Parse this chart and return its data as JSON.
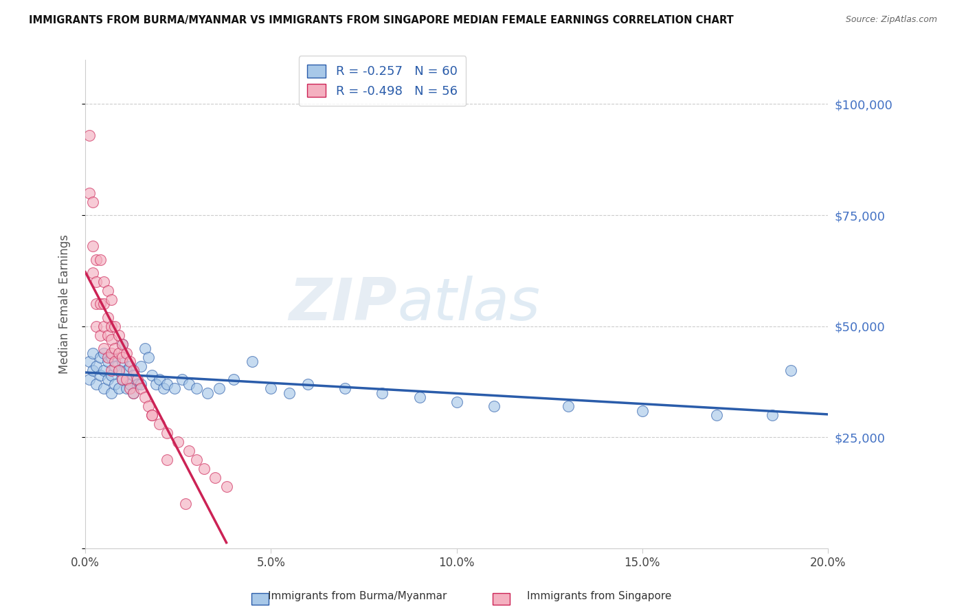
{
  "title": "IMMIGRANTS FROM BURMA/MYANMAR VS IMMIGRANTS FROM SINGAPORE MEDIAN FEMALE EARNINGS CORRELATION CHART",
  "source": "Source: ZipAtlas.com",
  "ylabel": "Median Female Earnings",
  "x_min": 0.0,
  "x_max": 0.2,
  "y_min": 0,
  "y_max": 110000,
  "yticks": [
    0,
    25000,
    50000,
    75000,
    100000
  ],
  "ytick_labels": [
    "",
    "$25,000",
    "$50,000",
    "$75,000",
    "$100,000"
  ],
  "xticks": [
    0.0,
    0.05,
    0.1,
    0.15,
    0.2
  ],
  "xtick_labels": [
    "0.0%",
    "5.0%",
    "10.0%",
    "15.0%",
    "20.0%"
  ],
  "legend_labels": [
    "Immigrants from Burma/Myanmar",
    "Immigrants from Singapore"
  ],
  "R_burma": -0.257,
  "N_burma": 60,
  "R_singapore": -0.498,
  "N_singapore": 56,
  "color_burma": "#a8c8e8",
  "color_singapore": "#f4b0c0",
  "line_color_burma": "#2a5caa",
  "line_color_singapore": "#cc2255",
  "background_color": "#ffffff",
  "watermark": "ZIPatlas",
  "burma_x": [
    0.001,
    0.001,
    0.002,
    0.002,
    0.003,
    0.003,
    0.004,
    0.004,
    0.005,
    0.005,
    0.005,
    0.006,
    0.006,
    0.007,
    0.007,
    0.007,
    0.008,
    0.008,
    0.009,
    0.009,
    0.01,
    0.01,
    0.01,
    0.011,
    0.011,
    0.012,
    0.012,
    0.013,
    0.013,
    0.014,
    0.015,
    0.015,
    0.016,
    0.017,
    0.018,
    0.019,
    0.02,
    0.021,
    0.022,
    0.024,
    0.026,
    0.028,
    0.03,
    0.033,
    0.036,
    0.04,
    0.045,
    0.05,
    0.055,
    0.06,
    0.07,
    0.08,
    0.09,
    0.1,
    0.11,
    0.13,
    0.15,
    0.17,
    0.185,
    0.19
  ],
  "burma_y": [
    42000,
    38000,
    40000,
    44000,
    37000,
    41000,
    39000,
    43000,
    36000,
    40000,
    44000,
    38000,
    42000,
    35000,
    39000,
    43000,
    37000,
    41000,
    36000,
    40000,
    38000,
    42000,
    46000,
    36000,
    40000,
    37000,
    41000,
    35000,
    39000,
    37000,
    41000,
    37000,
    45000,
    43000,
    39000,
    37000,
    38000,
    36000,
    37000,
    36000,
    38000,
    37000,
    36000,
    35000,
    36000,
    38000,
    42000,
    36000,
    35000,
    37000,
    36000,
    35000,
    34000,
    33000,
    32000,
    32000,
    31000,
    30000,
    30000,
    40000
  ],
  "singapore_x": [
    0.001,
    0.001,
    0.002,
    0.002,
    0.002,
    0.003,
    0.003,
    0.003,
    0.003,
    0.004,
    0.004,
    0.004,
    0.005,
    0.005,
    0.005,
    0.005,
    0.006,
    0.006,
    0.006,
    0.006,
    0.007,
    0.007,
    0.007,
    0.007,
    0.007,
    0.008,
    0.008,
    0.008,
    0.009,
    0.009,
    0.009,
    0.01,
    0.01,
    0.01,
    0.011,
    0.011,
    0.012,
    0.012,
    0.013,
    0.013,
    0.014,
    0.015,
    0.016,
    0.017,
    0.018,
    0.02,
    0.022,
    0.025,
    0.028,
    0.03,
    0.032,
    0.035,
    0.038,
    0.018,
    0.022,
    0.027
  ],
  "singapore_y": [
    93000,
    80000,
    78000,
    68000,
    62000,
    65000,
    60000,
    55000,
    50000,
    65000,
    55000,
    48000,
    60000,
    55000,
    50000,
    45000,
    58000,
    52000,
    48000,
    43000,
    56000,
    50000,
    47000,
    44000,
    40000,
    50000,
    45000,
    42000,
    48000,
    44000,
    40000,
    46000,
    43000,
    38000,
    44000,
    38000,
    42000,
    36000,
    40000,
    35000,
    38000,
    36000,
    34000,
    32000,
    30000,
    28000,
    26000,
    24000,
    22000,
    20000,
    18000,
    16000,
    14000,
    30000,
    20000,
    10000
  ]
}
